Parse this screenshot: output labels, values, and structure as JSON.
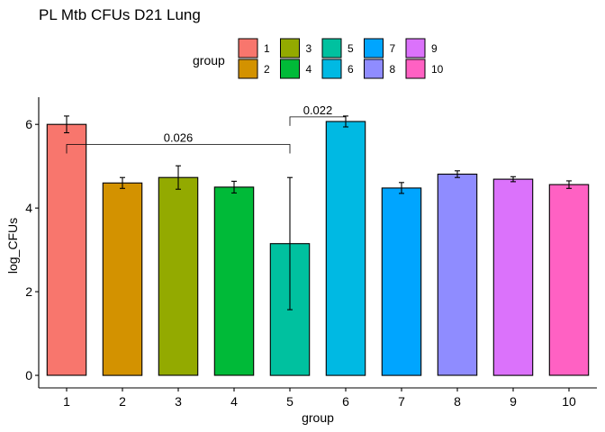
{
  "chart_data": {
    "type": "bar",
    "title": "PL Mtb CFUs D21 Lung",
    "xlabel": "group",
    "ylabel": "log_CFUs",
    "ylim": [
      -0.3,
      6.65
    ],
    "yticks": [
      0,
      2,
      4,
      6
    ],
    "grid": false,
    "legend": {
      "title": "group",
      "placement": "top",
      "entries": [
        "1",
        "2",
        "3",
        "4",
        "5",
        "6",
        "7",
        "8",
        "9",
        "10"
      ]
    },
    "categories": [
      "1",
      "2",
      "3",
      "4",
      "5",
      "6",
      "7",
      "8",
      "9",
      "10"
    ],
    "values": [
      6.0,
      4.6,
      4.73,
      4.5,
      3.15,
      6.07,
      4.48,
      4.81,
      4.69,
      4.56
    ],
    "errors": [
      0.2,
      0.13,
      0.28,
      0.14,
      1.58,
      0.13,
      0.13,
      0.08,
      0.06,
      0.09
    ],
    "colors": [
      "#F8766D",
      "#D39200",
      "#93AA00",
      "#00BA38",
      "#00C19F",
      "#00B9E3",
      "#00A5FF",
      "#8F8CFF",
      "#DB72FB",
      "#FF61C3"
    ],
    "annotations": [
      {
        "from": "1",
        "to": "5",
        "y": 5.52,
        "label": "0.026"
      },
      {
        "from": "5",
        "to": "6",
        "y": 6.18,
        "label": "0.022"
      }
    ]
  }
}
